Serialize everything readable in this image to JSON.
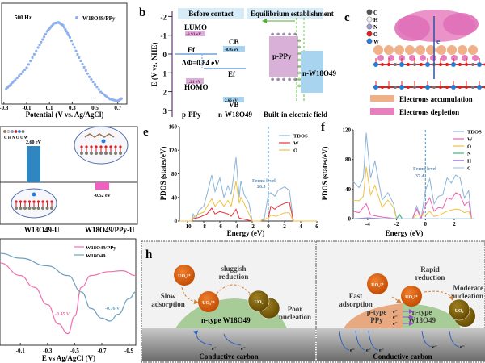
{
  "panel_labels": {
    "b": "b",
    "c": "c",
    "e": "e",
    "f": "f",
    "h": "h"
  },
  "chart_data": [
    {
      "id": "a",
      "type": "scatter",
      "annotation": "500 Hz",
      "legend": [
        "W18O49/PPy"
      ],
      "xlabel": "Potential (V vs. Ag/AgCl)",
      "ylabel": "",
      "xticks": [
        "-0.3",
        "-0.1",
        "0.1",
        "0.3",
        "0.5",
        "0.7"
      ],
      "xlim": [
        -0.32,
        0.78
      ],
      "ylim": [
        0,
        1
      ],
      "series": [
        {
          "name": "W18O49/PPy",
          "color": "#8fb0f0",
          "x": [
            -0.28,
            -0.2,
            -0.1,
            0.0,
            0.08,
            0.14,
            0.18,
            0.22,
            0.28,
            0.36,
            0.45,
            0.55,
            0.63,
            0.7,
            0.74
          ],
          "y": [
            0.15,
            0.24,
            0.36,
            0.56,
            0.72,
            0.8,
            0.81,
            0.78,
            0.66,
            0.46,
            0.27,
            0.12,
            0.05,
            0.03,
            0.06
          ]
        }
      ]
    },
    {
      "id": "e",
      "type": "line",
      "xlabel": "Energy (eV)",
      "ylabel": "PDOS (states/eV)",
      "xticks": [
        "-10",
        "-8",
        "-6",
        "-4",
        "-2",
        "0",
        "2",
        "4",
        "6"
      ],
      "yticks": [
        "0",
        "40",
        "80",
        "120",
        "160"
      ],
      "xlim": [
        -11,
        6
      ],
      "ylim": [
        0,
        160
      ],
      "fermi_label": "Fermi level",
      "fermi_value": "26.5",
      "legend": [
        "TDOS",
        "W",
        "O"
      ],
      "series": [
        {
          "name": "TDOS",
          "color": "#8ab4d8",
          "points": [
            [
              -11,
              0
            ],
            [
              -9.5,
              0
            ],
            [
              -9.3,
              12
            ],
            [
              -9,
              3
            ],
            [
              -8.6,
              18
            ],
            [
              -8,
              25
            ],
            [
              -7.6,
              45
            ],
            [
              -7,
              78
            ],
            [
              -6.6,
              50
            ],
            [
              -6,
              73
            ],
            [
              -5.5,
              40
            ],
            [
              -5,
              60
            ],
            [
              -4.6,
              45
            ],
            [
              -4,
              108
            ],
            [
              -3.6,
              40
            ],
            [
              -3.4,
              68
            ],
            [
              -3,
              45
            ],
            [
              -2.4,
              30
            ],
            [
              -2,
              0
            ],
            [
              -1,
              0
            ],
            [
              -0.5,
              5
            ],
            [
              0,
              45
            ],
            [
              0.3,
              48
            ],
            [
              0.8,
              42
            ],
            [
              1.2,
              52
            ],
            [
              2,
              58
            ],
            [
              2.6,
              52
            ],
            [
              3.1,
              0
            ],
            [
              6,
              0
            ]
          ]
        },
        {
          "name": "W",
          "color": "#e8333a",
          "points": [
            [
              -11,
              0
            ],
            [
              -9.5,
              0
            ],
            [
              -9.3,
              4
            ],
            [
              -8.6,
              6
            ],
            [
              -7.6,
              12
            ],
            [
              -7,
              22
            ],
            [
              -6.6,
              12
            ],
            [
              -6,
              16
            ],
            [
              -5,
              12
            ],
            [
              -4.6,
              8
            ],
            [
              -4,
              20
            ],
            [
              -3.6,
              5
            ],
            [
              -2,
              0
            ],
            [
              -1,
              0
            ],
            [
              0,
              5
            ],
            [
              0.3,
              25
            ],
            [
              0.8,
              20
            ],
            [
              1.2,
              25
            ],
            [
              2,
              30
            ],
            [
              2.6,
              32
            ],
            [
              3.1,
              0
            ],
            [
              6,
              0
            ]
          ]
        },
        {
          "name": "O",
          "color": "#f0c040",
          "points": [
            [
              -11,
              0
            ],
            [
              -9.5,
              0
            ],
            [
              -9.3,
              6
            ],
            [
              -8.6,
              12
            ],
            [
              -8,
              15
            ],
            [
              -7,
              38
            ],
            [
              -6.6,
              25
            ],
            [
              -6,
              35
            ],
            [
              -5.5,
              25
            ],
            [
              -5,
              35
            ],
            [
              -4.6,
              25
            ],
            [
              -4,
              68
            ],
            [
              -3.6,
              30
            ],
            [
              -3.4,
              40
            ],
            [
              -3,
              30
            ],
            [
              -2,
              0
            ],
            [
              -1,
              0
            ],
            [
              0,
              5
            ],
            [
              0.3,
              10
            ],
            [
              1,
              8
            ],
            [
              2,
              14
            ],
            [
              2.6,
              14
            ],
            [
              3.1,
              0
            ],
            [
              6,
              0
            ]
          ]
        }
      ]
    },
    {
      "id": "f",
      "type": "line",
      "xlabel": "Energy (eV)",
      "ylabel": "PDOS (states/eV)",
      "xticks": [
        "-4",
        "-2",
        "0",
        "2"
      ],
      "yticks": [
        "0",
        "40",
        "80",
        "120"
      ],
      "xlim": [
        -5,
        3.4
      ],
      "ylim": [
        0,
        120
      ],
      "fermi_label": "Fermi level",
      "fermi_value": "37.4",
      "legend": [
        "TDOS",
        "W",
        "O",
        "N",
        "H",
        "C"
      ],
      "series": [
        {
          "name": "TDOS",
          "color": "#8ab4d8",
          "points": [
            [
              -5,
              50
            ],
            [
              -4.6,
              42
            ],
            [
              -4.3,
              55
            ],
            [
              -4.1,
              116
            ],
            [
              -3.8,
              55
            ],
            [
              -3.5,
              78
            ],
            [
              -3,
              25
            ],
            [
              -2.6,
              35
            ],
            [
              -2.2,
              20
            ],
            [
              -2,
              0
            ],
            [
              -1.8,
              6
            ],
            [
              -1.6,
              0
            ],
            [
              -0.9,
              0
            ],
            [
              -0.6,
              17
            ],
            [
              -0.3,
              0
            ],
            [
              0,
              38
            ],
            [
              0.3,
              54
            ],
            [
              0.6,
              20
            ],
            [
              0.9,
              30
            ],
            [
              1.2,
              32
            ],
            [
              1.5,
              55
            ],
            [
              1.8,
              48
            ],
            [
              2.1,
              59
            ],
            [
              2.4,
              55
            ],
            [
              2.7,
              28
            ],
            [
              3,
              38
            ],
            [
              3.2,
              0
            ],
            [
              3.4,
              0
            ]
          ]
        },
        {
          "name": "W",
          "color": "#f060b0",
          "points": [
            [
              -5,
              10
            ],
            [
              -4.6,
              8
            ],
            [
              -4.1,
              20
            ],
            [
              -3.8,
              5
            ],
            [
              -3,
              2
            ],
            [
              -2,
              0
            ],
            [
              -0.9,
              0
            ],
            [
              -0.6,
              13
            ],
            [
              -0.3,
              0
            ],
            [
              0,
              18
            ],
            [
              0.3,
              28
            ],
            [
              0.6,
              10
            ],
            [
              0.9,
              15
            ],
            [
              1.2,
              14
            ],
            [
              1.5,
              28
            ],
            [
              1.8,
              26
            ],
            [
              2.1,
              35
            ],
            [
              2.4,
              32
            ],
            [
              2.7,
              18
            ],
            [
              3,
              23
            ],
            [
              3.2,
              0
            ],
            [
              3.4,
              0
            ]
          ]
        },
        {
          "name": "O",
          "color": "#f0c040",
          "points": [
            [
              -5,
              25
            ],
            [
              -4.6,
              24
            ],
            [
              -4.3,
              30
            ],
            [
              -4.1,
              70
            ],
            [
              -3.8,
              32
            ],
            [
              -3.5,
              45
            ],
            [
              -3,
              15
            ],
            [
              -2.6,
              25
            ],
            [
              -2.2,
              15
            ],
            [
              -2,
              0
            ],
            [
              -0.9,
              0
            ],
            [
              -0.6,
              5
            ],
            [
              0,
              5
            ],
            [
              0.3,
              10
            ],
            [
              0.6,
              3
            ],
            [
              1,
              5
            ],
            [
              1.5,
              10
            ],
            [
              2.1,
              13
            ],
            [
              2.4,
              12
            ],
            [
              2.7,
              8
            ],
            [
              3,
              10
            ],
            [
              3.2,
              0
            ],
            [
              3.4,
              0
            ]
          ]
        },
        {
          "name": "N",
          "color": "#3cb878",
          "points": [
            [
              -5,
              0
            ],
            [
              -2,
              0
            ],
            [
              -1.8,
              5
            ],
            [
              -1.6,
              0
            ],
            [
              3.4,
              0
            ]
          ]
        },
        {
          "name": "H",
          "color": "#9050c8",
          "points": [
            [
              -5,
              0
            ],
            [
              -4,
              1
            ],
            [
              -3,
              0
            ],
            [
              3.4,
              0
            ]
          ]
        },
        {
          "name": "C",
          "color": "#a8c8e0",
          "points": [
            [
              -5,
              0
            ],
            [
              3.4,
              0
            ]
          ]
        }
      ]
    },
    {
      "id": "d",
      "type": "bar",
      "categories": [
        "W18O49-U",
        "W18O49/PPy-U"
      ],
      "values": [
        2.6,
        -0.52
      ],
      "value_labels": [
        "2.60 eV",
        "-0.52 eV"
      ],
      "colors": [
        "#2f86c0",
        "#f060c0"
      ],
      "atom_legend": "C H N O U W"
    },
    {
      "id": "g",
      "type": "line",
      "xlabel": "E vs Ag/AgCl (V)",
      "xticks": [
        "-0.1",
        "-0.3",
        "-0.5",
        "-0.7",
        "-0.9"
      ],
      "xlim": [
        0.05,
        -0.95
      ],
      "ylim": [
        0,
        1
      ],
      "legend": [
        "W18O49/PPy",
        "W18O49"
      ],
      "peak_labels": [
        "-0.45 V",
        "-0.76 V"
      ],
      "series": [
        {
          "name": "W18O49/PPy",
          "color": "#f070b0",
          "x": [
            0.05,
            -0.1,
            -0.2,
            -0.3,
            -0.38,
            -0.45,
            -0.5,
            -0.55,
            -0.62,
            -0.75,
            -0.85,
            -0.95
          ],
          "y": [
            0.85,
            0.72,
            0.6,
            0.42,
            0.22,
            0.12,
            0.3,
            0.6,
            0.72,
            0.76,
            0.77,
            0.72
          ]
        },
        {
          "name": "W18O49",
          "color": "#6ca0c0",
          "x": [
            0.05,
            -0.1,
            -0.3,
            -0.45,
            -0.55,
            -0.62,
            -0.7,
            -0.76,
            -0.82,
            -0.9,
            -0.95
          ],
          "y": [
            0.95,
            0.9,
            0.82,
            0.72,
            0.55,
            0.38,
            0.28,
            0.25,
            0.32,
            0.48,
            0.55
          ]
        }
      ]
    }
  ],
  "b": {
    "ylabel": "E (V vs. NHE)",
    "yticks": [
      "-2",
      "-1",
      "0",
      "1",
      "2",
      "3"
    ],
    "before_contact": "Before contact",
    "equilibrium": "Equilibrium establishment",
    "lumo": "LUMO",
    "lumo_value": "-0.93 eV",
    "homo": "HOMO",
    "homo_value": "1.21 eV",
    "cb": "CB",
    "cb_value": "-0.05 eV",
    "vb": "VB",
    "vb_value": "2.66 eV",
    "ef1": "Ef",
    "ef2": "Ef",
    "delta_phi": "ΔΦ=0.84 eV",
    "p_ppy": "p-PPy",
    "n_w": "n-W18O49",
    "block_p": "p-PPy",
    "block_n": "n-W18O49",
    "field": "Built-in electric field"
  },
  "c": {
    "atoms": [
      {
        "label": "C",
        "color": "#555555"
      },
      {
        "label": "H",
        "color": "#eeeeee"
      },
      {
        "label": "N",
        "color": "#9aa0d0"
      },
      {
        "label": "O",
        "color": "#e02020"
      },
      {
        "label": "W",
        "color": "#2080e0"
      }
    ],
    "electron": "e⁻",
    "accumulation": "Electrons accumulation",
    "depletion": "Electrons depletion",
    "accum_color": "#f0b088",
    "deplet_color": "#e880c0"
  },
  "h": {
    "left": {
      "ion1": "UO₂²⁺",
      "ion2": "UO₂²⁺",
      "product": "UO₂",
      "slow": "Slow adsorption",
      "sluggish": "sluggish reduction",
      "poor": "Poor nucleation",
      "substrate": "n-type W18O49",
      "electron": "e⁻",
      "carbon": "Conductive carbon"
    },
    "right": {
      "ion1": "UO₂²⁺",
      "ion2": "UO₂²⁺",
      "product": "UO₂",
      "fast": "Fast adsorption",
      "rapid": "Rapid reduction",
      "moderate": "Moderate nucleation",
      "ptype": "p-type PPy",
      "ntype": "n-type W18O49",
      "electron": "e⁻",
      "carbon": "Conductive carbon"
    }
  }
}
